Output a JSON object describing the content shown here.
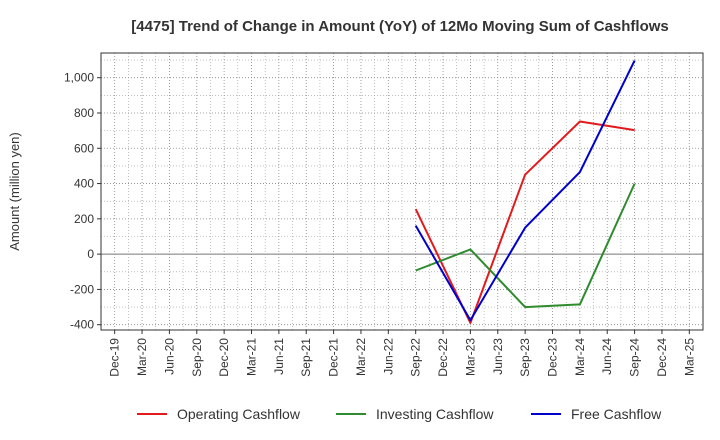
{
  "chart_data": {
    "type": "line",
    "title": "[4475]  Trend of Change in Amount (YoY) of 12Mo Moving Sum of Cashflows",
    "xlabel": "",
    "ylabel": "Amount (million yen)",
    "categories": [
      "Dec-19",
      "Mar-20",
      "Jun-20",
      "Sep-20",
      "Dec-20",
      "Mar-21",
      "Jun-21",
      "Sep-21",
      "Dec-21",
      "Mar-22",
      "Jun-22",
      "Sep-22",
      "Dec-22",
      "Mar-23",
      "Jun-23",
      "Sep-23",
      "Dec-23",
      "Mar-24",
      "Jun-24",
      "Sep-24",
      "Dec-24",
      "Mar-25"
    ],
    "ylim": [
      -430,
      1140
    ],
    "yticks": [
      -400,
      -200,
      0,
      200,
      400,
      600,
      800,
      1000
    ],
    "ytick_labels": [
      "-400",
      "-200",
      "0",
      "200",
      "400",
      "600",
      "800",
      "1,000"
    ],
    "grid": true,
    "legend_position": "bottom",
    "series": [
      {
        "name": "Operating Cashflow",
        "color": "#e31a1c",
        "values": [
          null,
          null,
          null,
          null,
          null,
          null,
          null,
          null,
          null,
          null,
          null,
          255,
          null,
          -390,
          null,
          450,
          null,
          752,
          null,
          703,
          null,
          null
        ]
      },
      {
        "name": "Investing Cashflow",
        "color": "#2e8b2e",
        "values": [
          null,
          null,
          null,
          null,
          null,
          null,
          null,
          null,
          null,
          null,
          null,
          -93,
          null,
          27,
          null,
          -300,
          null,
          -285,
          null,
          400,
          null,
          null
        ]
      },
      {
        "name": "Free Cashflow",
        "color": "#0000cc",
        "values": [
          null,
          null,
          null,
          null,
          null,
          null,
          null,
          null,
          null,
          null,
          null,
          162,
          null,
          -375,
          null,
          150,
          null,
          465,
          null,
          1097,
          null,
          null
        ]
      }
    ]
  }
}
